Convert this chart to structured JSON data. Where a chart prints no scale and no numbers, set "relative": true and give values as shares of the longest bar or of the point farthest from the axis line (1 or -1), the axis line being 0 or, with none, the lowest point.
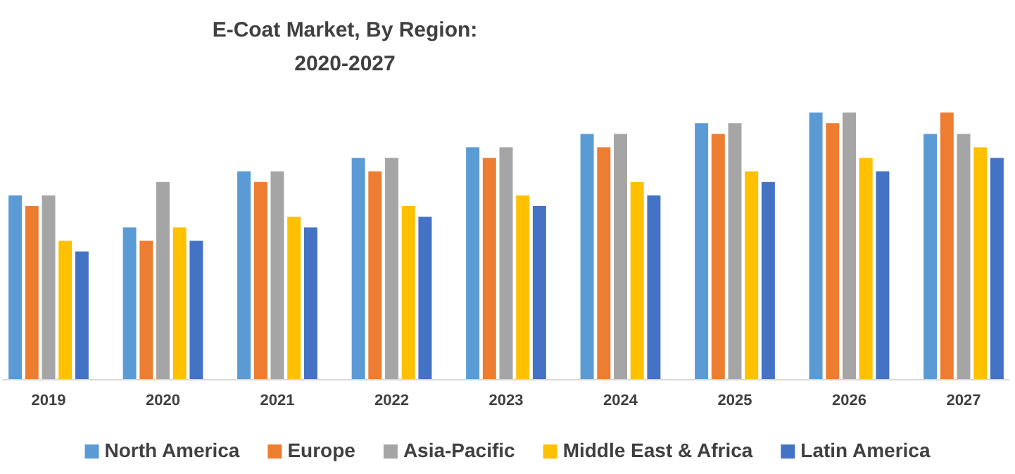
{
  "chart_data": {
    "type": "bar",
    "title": "E-Coat Market, By Region: 2020-2027",
    "relative": true,
    "legend": "bottom",
    "categories": [
      "2019",
      "2020",
      "2021",
      "2022",
      "2023",
      "2024",
      "2025",
      "2026",
      "2027"
    ],
    "series": [
      {
        "name": "North America",
        "color": "#5b9bd5",
        "values": [
          0.69,
          0.57,
          0.78,
          0.83,
          0.87,
          0.92,
          0.96,
          1,
          0.92
        ]
      },
      {
        "name": "Europe",
        "color": "#ed7d31",
        "values": [
          0.65,
          0.52,
          0.74,
          0.78,
          0.83,
          0.87,
          0.92,
          0.96,
          1
        ]
      },
      {
        "name": "Asia-Pacific",
        "color": "#a5a5a5",
        "values": [
          0.69,
          0.74,
          0.78,
          0.83,
          0.87,
          0.92,
          0.96,
          1,
          0.92
        ]
      },
      {
        "name": "Middle East & Africa",
        "color": "#ffc000",
        "values": [
          0.52,
          0.57,
          0.61,
          0.65,
          0.69,
          0.74,
          0.78,
          0.83,
          0.87
        ]
      },
      {
        "name": "Latin America",
        "color": "#4472c4",
        "values": [
          0.48,
          0.52,
          0.57,
          0.61,
          0.65,
          0.69,
          0.74,
          0.78,
          0.83
        ]
      }
    ]
  }
}
